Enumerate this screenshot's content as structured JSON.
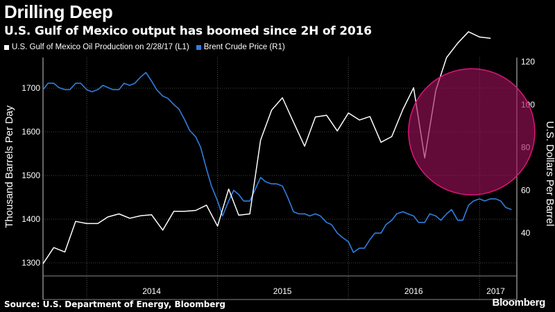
{
  "header": {
    "title": "Drilling Deep",
    "subtitle": "U.S. Gulf of Mexico output has boomed since 2H of 2016"
  },
  "footer": {
    "source": "Source: U.S. Department of Energy, Bloomberg",
    "brand": "Bloomberg"
  },
  "colors": {
    "background": "#000000",
    "oil": "#ffffff",
    "brent": "#2f7fe0",
    "highlight_fill": "#a0125a",
    "highlight_stroke": "#e0157a"
  },
  "chart_data": {
    "type": "line",
    "title": "Drilling Deep",
    "subtitle": "U.S. Gulf of Mexico output has boomed since 2H of 2016",
    "ylabel_left": "Thousand Barrels Per Day",
    "ylabel_right": "U.S. Dollars Per Barrel",
    "xlim": [
      "2013-09-01",
      "2017-04-15"
    ],
    "ylim_left": [
      1270,
      1770
    ],
    "ylim_right": [
      20,
      122
    ],
    "left_ticks": [
      1300,
      1400,
      1500,
      1600,
      1700
    ],
    "right_ticks": [
      40,
      60,
      80,
      100,
      120
    ],
    "x_labels": [
      {
        "label": "2014",
        "date": "2014-07-01"
      },
      {
        "label": "2015",
        "date": "2015-07-01"
      },
      {
        "label": "2016",
        "date": "2016-07-01"
      },
      {
        "label": "2017",
        "date": "2017-02-15"
      }
    ],
    "year_dividers": [
      "2014-01-01",
      "2015-01-01",
      "2016-01-01",
      "2017-01-01"
    ],
    "legend_position": "top-left",
    "annotation": {
      "type": "circle",
      "label": "",
      "center": [
        "2016-12-10",
        1600
      ]
    },
    "series": [
      {
        "name": "U.S. Gulf of Mexico Oil Production on 2/28/17",
        "axis": "L1",
        "x": [
          "2013-09-01",
          "2013-10-01",
          "2013-11-01",
          "2013-12-01",
          "2014-01-01",
          "2014-02-01",
          "2014-03-01",
          "2014-04-01",
          "2014-05-01",
          "2014-06-01",
          "2014-07-01",
          "2014-08-01",
          "2014-09-01",
          "2014-10-01",
          "2014-11-01",
          "2014-12-01",
          "2015-01-01",
          "2015-02-01",
          "2015-03-01",
          "2015-04-01",
          "2015-05-01",
          "2015-06-01",
          "2015-07-01",
          "2015-08-01",
          "2015-09-01",
          "2015-10-01",
          "2015-11-01",
          "2015-12-01",
          "2016-01-01",
          "2016-02-01",
          "2016-03-01",
          "2016-04-01",
          "2016-05-01",
          "2016-06-01",
          "2016-07-01",
          "2016-08-01",
          "2016-09-01",
          "2016-10-01",
          "2016-11-01",
          "2016-12-01",
          "2017-01-01",
          "2017-02-01"
        ],
        "values": [
          1298,
          1335,
          1325,
          1395,
          1390,
          1390,
          1405,
          1412,
          1402,
          1408,
          1410,
          1375,
          1418,
          1418,
          1420,
          1432,
          1384,
          1469,
          1409,
          1412,
          1581,
          1650,
          1678,
          1622,
          1567,
          1634,
          1638,
          1602,
          1643,
          1627,
          1635,
          1576,
          1589,
          1651,
          1701,
          1540,
          1695,
          1770,
          1803,
          1829,
          1817,
          1814
        ]
      },
      {
        "name": "Brent Crude Price",
        "axis": "R1",
        "x": [
          "2013-09-01",
          "2013-09-15",
          "2013-10-01",
          "2013-10-15",
          "2013-11-01",
          "2013-11-15",
          "2013-12-01",
          "2013-12-15",
          "2014-01-01",
          "2014-01-15",
          "2014-02-01",
          "2014-02-15",
          "2014-03-01",
          "2014-03-15",
          "2014-04-01",
          "2014-04-15",
          "2014-05-01",
          "2014-05-15",
          "2014-06-01",
          "2014-06-15",
          "2014-07-01",
          "2014-07-15",
          "2014-08-01",
          "2014-08-15",
          "2014-09-01",
          "2014-09-15",
          "2014-10-01",
          "2014-10-15",
          "2014-11-01",
          "2014-11-15",
          "2014-12-01",
          "2014-12-15",
          "2015-01-01",
          "2015-01-15",
          "2015-02-01",
          "2015-02-15",
          "2015-03-01",
          "2015-03-15",
          "2015-04-01",
          "2015-04-15",
          "2015-05-01",
          "2015-05-15",
          "2015-06-01",
          "2015-06-15",
          "2015-07-01",
          "2015-07-15",
          "2015-08-01",
          "2015-08-15",
          "2015-09-01",
          "2015-09-15",
          "2015-10-01",
          "2015-10-15",
          "2015-11-01",
          "2015-11-15",
          "2015-12-01",
          "2015-12-15",
          "2016-01-01",
          "2016-01-15",
          "2016-02-01",
          "2016-02-15",
          "2016-03-01",
          "2016-03-15",
          "2016-04-01",
          "2016-04-15",
          "2016-05-01",
          "2016-05-15",
          "2016-06-01",
          "2016-06-15",
          "2016-07-01",
          "2016-07-15",
          "2016-08-01",
          "2016-08-15",
          "2016-09-01",
          "2016-09-15",
          "2016-10-01",
          "2016-10-15",
          "2016-11-01",
          "2016-11-15",
          "2016-12-01",
          "2016-12-15",
          "2017-01-01",
          "2017-01-15",
          "2017-02-01",
          "2017-02-15",
          "2017-03-01",
          "2017-03-15",
          "2017-03-31"
        ],
        "values": [
          107,
          110,
          110,
          108,
          107,
          107,
          110,
          110,
          107,
          106,
          107,
          109,
          108,
          107,
          107,
          110,
          109,
          110,
          113,
          115,
          111,
          107,
          104,
          103,
          100,
          98,
          93,
          88,
          85,
          80,
          70,
          62,
          55,
          48,
          55,
          60,
          58,
          55,
          55,
          60,
          66,
          64,
          63,
          63,
          62,
          57,
          50,
          49,
          49,
          48,
          49,
          48,
          45,
          44,
          40,
          38,
          36,
          31,
          33,
          33,
          37,
          40,
          40,
          44,
          46,
          49,
          50,
          49,
          48,
          45,
          45,
          49,
          48,
          46,
          49,
          51,
          46,
          46,
          53,
          55,
          56,
          55,
          56,
          56,
          55,
          52,
          51
        ]
      }
    ]
  }
}
